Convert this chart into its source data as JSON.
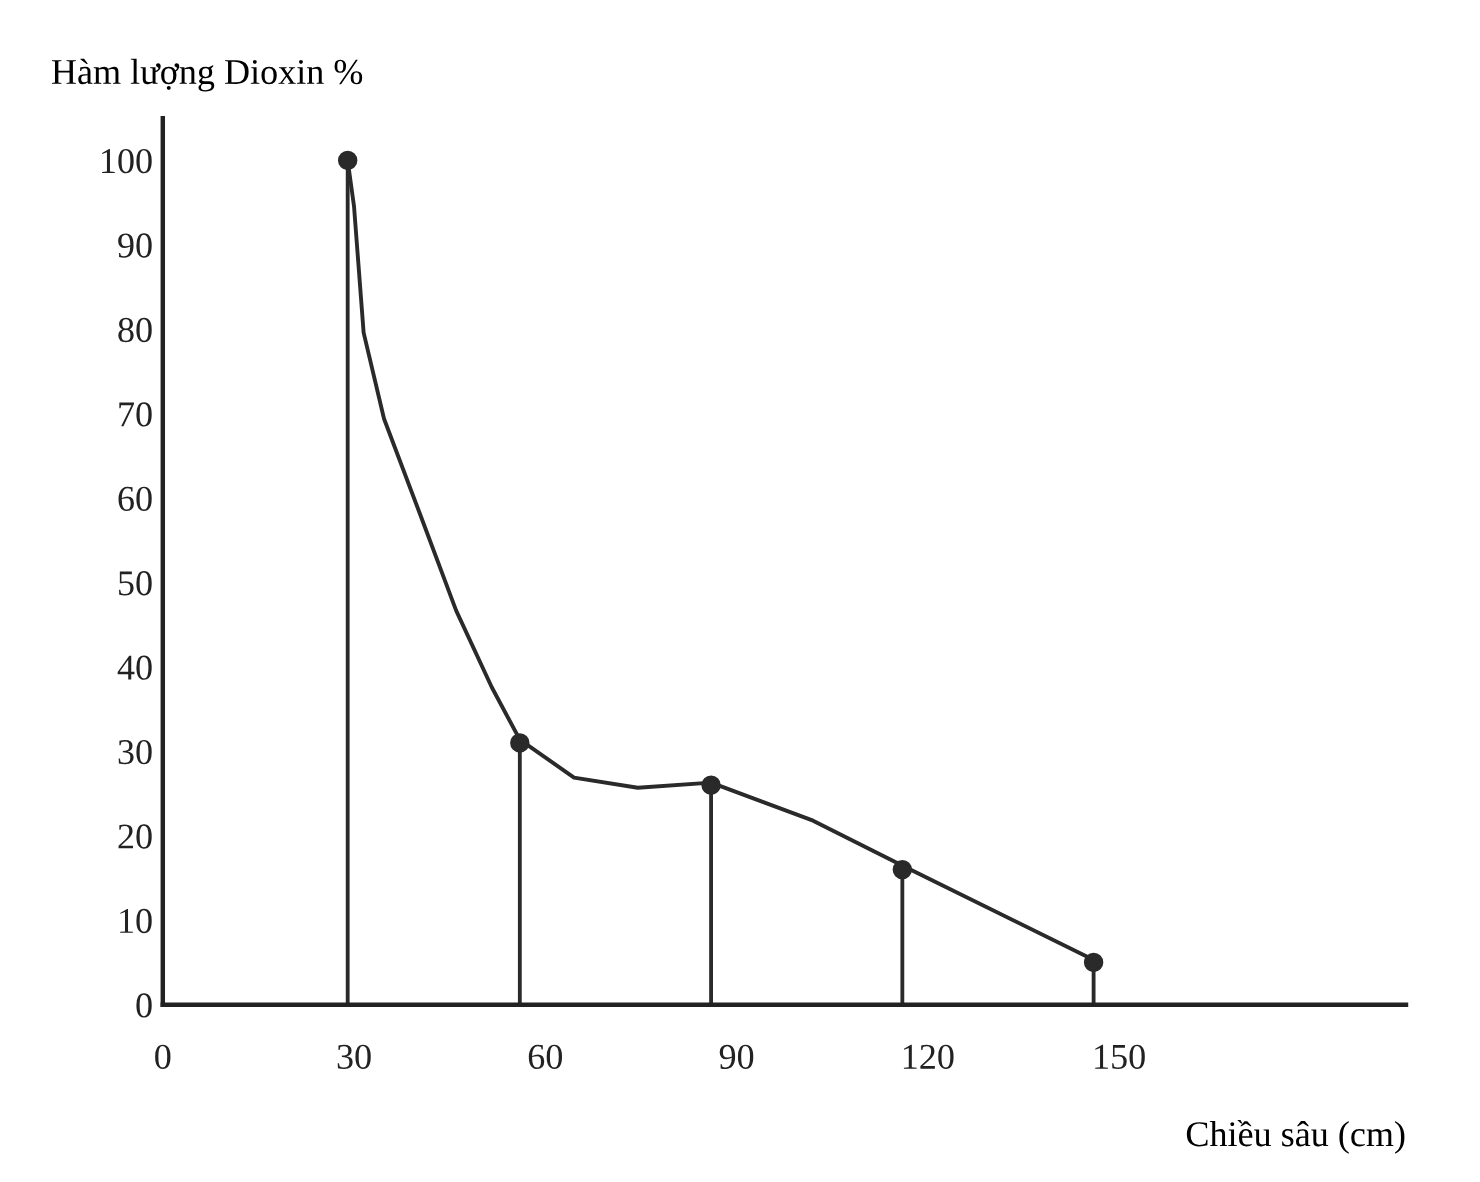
{
  "chart_data": {
    "type": "line",
    "xlabel": "Chiều sâu (cm)",
    "ylabel": "Hàm lượng Dioxin %",
    "x": [
      29,
      56,
      86,
      116,
      146
    ],
    "series": [
      {
        "type": "lollipop",
        "color": "#2a2a2a",
        "values": [
          100,
          31,
          26,
          16,
          5
        ]
      },
      {
        "color": "#2a2a2a",
        "marker": "none",
        "x": [
          29,
          30,
          31.5,
          34.7,
          40.4,
          46,
          51.6,
          56,
          64.5,
          74.5,
          86,
          102,
          117,
          146
        ],
        "values": [
          100,
          94.5,
          79.6,
          69.4,
          58,
          46.7,
          37.6,
          31.4,
          26.9,
          25.7,
          26.3,
          21.8,
          16.1,
          5.3
        ]
      }
    ],
    "xlim": [
      0,
      195
    ],
    "ylim": [
      0,
      105
    ],
    "xticks": [
      0,
      30,
      60,
      90,
      120,
      150
    ],
    "yticks": [
      0,
      10,
      20,
      30,
      40,
      50,
      60,
      70,
      80,
      90,
      100
    ],
    "marker": "circle",
    "line_style": "solid",
    "grid": false,
    "legend": false
  }
}
